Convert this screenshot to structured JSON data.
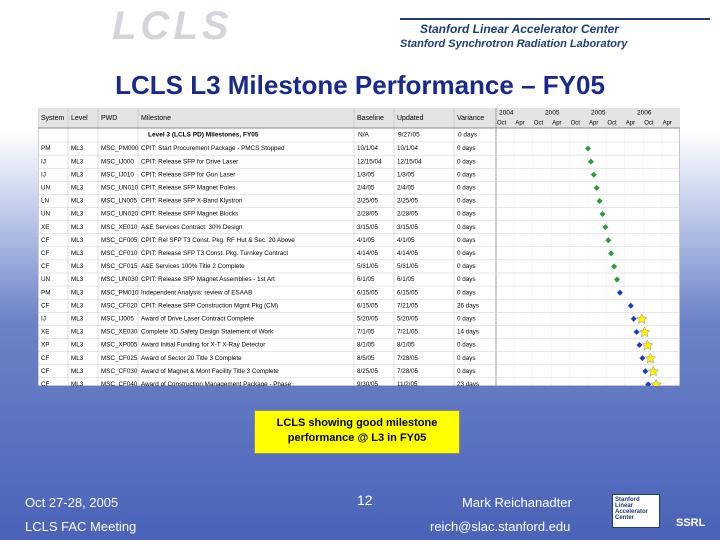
{
  "header": {
    "logo": "LCLS",
    "org1": "Stanford Linear Accelerator Center",
    "org2": "Stanford Synchrotron Radiation Laboratory"
  },
  "title": "LCLS L3 Milestone Performance – FY05",
  "table": {
    "columns": [
      "System",
      "Level",
      "PWD",
      "Milestone",
      "Baseline",
      "Updated",
      "Variance"
    ],
    "years": [
      "2004",
      "2005",
      "2005",
      "2006"
    ],
    "quarters": [
      "Oct",
      "Apr",
      "Oct",
      "Apr",
      "Oct",
      "Apr",
      "Oct",
      "Apr",
      "Oct",
      "Apr"
    ],
    "summary": [
      "Level 3 (LCLS PD) Milestones, FY05",
      "N/A",
      "9/27/05",
      "0 days"
    ],
    "rows": [
      [
        "PM",
        "ML3",
        "MSC_PM000",
        "CPIT: Start Procurement Package - PMCS Stopped",
        "10/1/04",
        "10/1/04",
        "0 days"
      ],
      [
        "IJ",
        "ML3",
        "MSC_IJ000",
        "CPIT: Release SFP for Drive Laser",
        "12/15/04",
        "12/15/04",
        "0 days"
      ],
      [
        "IJ",
        "ML3",
        "MSC_IJ010",
        "CPIT: Release SFP for Gun Laser",
        "1/3/05",
        "1/3/05",
        "0 days"
      ],
      [
        "UN",
        "ML3",
        "MSC_UN010",
        "CPIT: Release SFP Magnet Poles",
        "2/4/05",
        "2/4/05",
        "0 days"
      ],
      [
        "LN",
        "ML3",
        "MSC_LN005",
        "CPIT: Release SFP X-Band Klystron",
        "2/25/05",
        "2/25/05",
        "0 days"
      ],
      [
        "UN",
        "ML3",
        "MSC_UN020",
        "CPIT: Release SFP Magnet Blocks",
        "2/28/05",
        "2/28/05",
        "0 days"
      ],
      [
        "XE",
        "ML3",
        "MSC_XE010",
        "A&E Services Contract: 30% Design",
        "3/15/05",
        "3/15/05",
        "0 days"
      ],
      [
        "CF",
        "ML3",
        "MSC_CF005",
        "CPIT: Rel SFP T3 Const. Pkg. RF Hut & Sec. 20 Above",
        "4/1/05",
        "4/1/05",
        "0 days"
      ],
      [
        "CF",
        "ML3",
        "MSC_CF010",
        "CPIT: Release SFP T3 Const. Pkg. Turnkey Contract",
        "4/14/05",
        "4/14/05",
        "0 days"
      ],
      [
        "CF",
        "ML3",
        "MSC_CF015",
        "A&E Services 100% Title 2 Complete",
        "5/31/05",
        "5/31/05",
        "0 days"
      ],
      [
        "UN",
        "ML3",
        "MSC_UN030",
        "CPIT: Release SFP Magnet Assemblies - 1st Art",
        "6/1/05",
        "6/1/05",
        "0 days"
      ],
      [
        "PM",
        "ML3",
        "MSC_PM010",
        "Independent Analysis: review of ESAAB",
        "6/15/05",
        "6/15/05",
        "0 days"
      ],
      [
        "CF",
        "ML3",
        "MSC_CF020",
        "CPIT: Release SFP Construction Mgmt Pkg (CM)",
        "6/15/05",
        "7/21/05",
        "26 days"
      ],
      [
        "IJ",
        "ML3",
        "MSC_IJ005",
        "Award of Drive Laser Contract Complete",
        "5/20/05",
        "5/20/05",
        "0 days"
      ],
      [
        "XE",
        "ML3",
        "MSC_XE030",
        "Complete XD Safety Design Statement of Work",
        "7/1/05",
        "7/21/05",
        "14 days"
      ],
      [
        "XP",
        "ML3",
        "MSC_XP005",
        "Award Initial Funding for X-T X-Ray Detector",
        "8/1/05",
        "8/1/05",
        "0 days"
      ],
      [
        "CF",
        "ML3",
        "MSC_CF025",
        "Award of Sector 20 Title 3 Complete",
        "8/5/05",
        "7/28/05",
        "0 days"
      ],
      [
        "CF",
        "ML3",
        "MSC_CF030",
        "Award of Magnet & Mont Facility Title 3 Complete",
        "8/25/05",
        "7/28/05",
        "0 days"
      ],
      [
        "CF",
        "ML3",
        "MSC_CF040",
        "Award of Construction Management Package - Phase",
        "9/30/05",
        "11/2/05",
        "23 days"
      ]
    ]
  },
  "callout": "LCLS showing good milestone performance @ L3 in FY05",
  "footer": {
    "date": "Oct 27-28, 2005",
    "meeting": "LCLS FAC Meeting",
    "page": "12",
    "presenter": "Mark Reichanadter",
    "email": "reich@slac.stanford.edu",
    "logo_text": "Stanford Linear Accelerator Center",
    "ssrl": "SSRL"
  }
}
